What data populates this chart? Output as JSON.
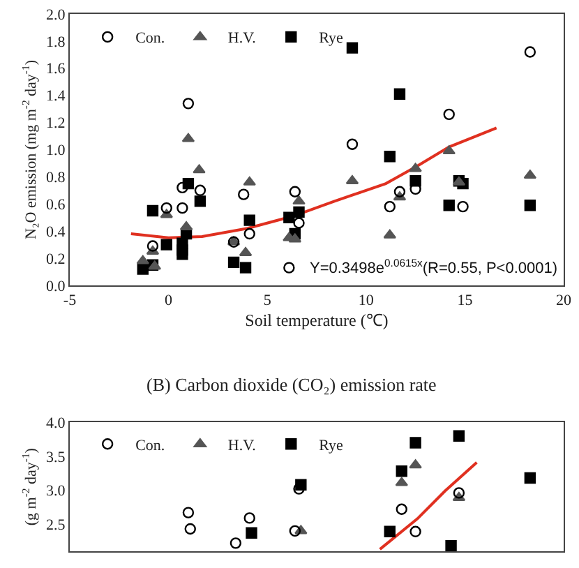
{
  "chart_data": [
    {
      "type": "scatter",
      "xlabel": "Soil temperature (℃)",
      "ylabel": "N₂O emission (mg m$^{-2}$ day$^{-1}$)",
      "xlim": [
        -5,
        20
      ],
      "xticks": [
        -5,
        0,
        5,
        10,
        15,
        20
      ],
      "ylim": [
        0,
        2.0
      ],
      "yticks": [
        {
          "value": 0,
          "label": "0.0"
        },
        0.2,
        0.4,
        0.6,
        0.8,
        {
          "value": 1,
          "label": "1.0"
        },
        1.2,
        1.4,
        1.6,
        1.8,
        {
          "value": 2,
          "label": "2.0"
        }
      ],
      "legend": "top left",
      "series": [
        {
          "name": "Con.",
          "color": "#000000",
          "marker": "circle",
          "x": [
            1.0,
            9.3,
            14.2,
            18.3,
            -0.1,
            -0.8,
            0.7,
            0.7,
            1.6,
            3.8,
            4.1,
            3.3,
            6.4,
            6.6,
            6.1,
            11.2,
            11.7,
            12.5,
            14.9
          ],
          "values": [
            1.34,
            1.04,
            1.26,
            1.72,
            0.57,
            0.29,
            0.72,
            0.57,
            0.7,
            0.67,
            0.38,
            0.32,
            0.69,
            0.46,
            0.13,
            0.58,
            0.69,
            0.71,
            0.58
          ]
        },
        {
          "name": "H.V.",
          "color": "#555555",
          "marker": "triangle",
          "x": [
            1.0,
            1.55,
            4.1,
            9.3,
            12.5,
            14.2,
            18.3,
            -1.3,
            -0.8,
            -0.7,
            -0.1,
            0.9,
            3.3,
            3.9,
            6.1,
            6.4,
            6.6,
            11.2,
            11.7,
            14.7
          ],
          "values": [
            1.08,
            0.85,
            0.76,
            0.77,
            0.86,
            0.99,
            0.81,
            0.18,
            0.25,
            0.14,
            0.52,
            0.43,
            0.32,
            0.24,
            0.35,
            0.34,
            0.62,
            0.37,
            0.65,
            0.76
          ]
        },
        {
          "name": "Rye",
          "color": "#000000",
          "marker": "square",
          "x": [
            9.3,
            11.7,
            11.2,
            12.5,
            14.7,
            -1.3,
            -0.8,
            -0.8,
            -0.1,
            0.7,
            0.7,
            0.7,
            1.0,
            0.9,
            1.6,
            3.3,
            3.9,
            4.1,
            6.1,
            6.4,
            6.6,
            14.2,
            14.9,
            18.3
          ],
          "values": [
            1.75,
            1.41,
            0.95,
            0.77,
            0.77,
            0.12,
            0.15,
            0.55,
            0.3,
            0.31,
            0.26,
            0.23,
            0.75,
            0.38,
            0.62,
            0.17,
            0.13,
            0.48,
            0.5,
            0.38,
            0.54,
            0.59,
            0.75,
            0.59
          ]
        },
        {
          "type": "line",
          "color": "#e03020",
          "marker": "none",
          "x": [
            -1.9,
            0,
            1.7,
            4,
            6.3,
            8.4,
            11,
            12.6,
            14.2,
            16.6
          ],
          "values": [
            0.38,
            0.35,
            0.36,
            0.42,
            0.51,
            0.62,
            0.75,
            0.88,
            1.02,
            1.16
          ]
        }
      ],
      "annotations": [
        "Y=0.3498e$^{0.0615x}$(R=0.55, P<0.0001)"
      ]
    },
    {
      "type": "scatter",
      "title": "(B) Carbon dioxide (CO₂) emission rate",
      "ylabel": "(g m$^{-2}$ day$^{-1}$)",
      "xlim": [
        -5,
        20
      ],
      "ylim": [
        2.1,
        4.0
      ],
      "yticks": [
        2.5,
        {
          "value": 3,
          "label": "3.0"
        },
        3.5,
        {
          "value": 4,
          "label": "4.0"
        }
      ],
      "tick_labels": "y",
      "legend": "top left",
      "series": [
        {
          "name": "Con.",
          "color": "#000000",
          "marker": "circle",
          "x": [
            1.0,
            1.1,
            3.4,
            4.1,
            6.4,
            6.6,
            11.8,
            12.5,
            14.7
          ],
          "values": [
            2.67,
            2.43,
            2.22,
            2.59,
            2.4,
            3.02,
            2.72,
            2.39,
            2.96
          ]
        },
        {
          "name": "H.V.",
          "color": "#555555",
          "marker": "triangle",
          "x": [
            6.7,
            11.8,
            12.5,
            14.7
          ],
          "values": [
            2.4,
            3.11,
            3.37,
            2.89
          ]
        },
        {
          "name": "Rye",
          "color": "#000000",
          "marker": "square",
          "x": [
            4.2,
            6.7,
            11.2,
            11.8,
            12.5,
            14.7,
            14.3,
            18.3
          ],
          "values": [
            2.37,
            3.08,
            2.39,
            3.28,
            3.7,
            3.8,
            2.18,
            3.18
          ]
        },
        {
          "type": "line",
          "color": "#e03020",
          "marker": "none",
          "x": [
            10.7,
            12.6,
            14.0,
            15.6
          ],
          "values": [
            2.13,
            2.58,
            2.99,
            3.41
          ]
        }
      ]
    }
  ]
}
